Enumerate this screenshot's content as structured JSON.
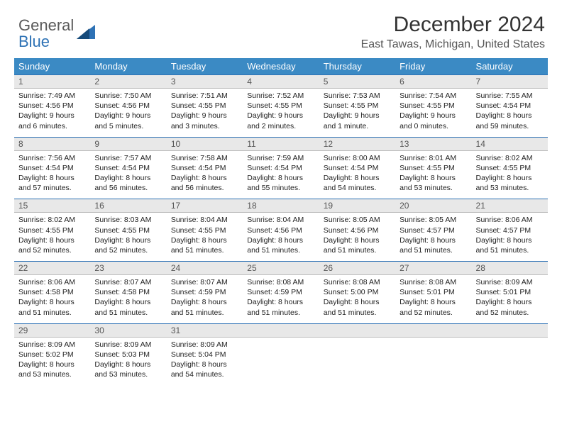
{
  "logo": {
    "word1": "General",
    "word2": "Blue"
  },
  "title": "December 2024",
  "subtitle": "East Tawas, Michigan, United States",
  "colors": {
    "header_bg": "#3b8ac4",
    "header_fg": "#ffffff",
    "daynum_bg": "#e8e8e8",
    "rule": "#2e72b5",
    "logo_gray": "#5a5a5a",
    "logo_blue": "#2e72b5"
  },
  "day_headers": [
    "Sunday",
    "Monday",
    "Tuesday",
    "Wednesday",
    "Thursday",
    "Friday",
    "Saturday"
  ],
  "weeks": [
    [
      {
        "n": "1",
        "sr": "7:49 AM",
        "ss": "4:56 PM",
        "dl": "9 hours and 6 minutes."
      },
      {
        "n": "2",
        "sr": "7:50 AM",
        "ss": "4:56 PM",
        "dl": "9 hours and 5 minutes."
      },
      {
        "n": "3",
        "sr": "7:51 AM",
        "ss": "4:55 PM",
        "dl": "9 hours and 3 minutes."
      },
      {
        "n": "4",
        "sr": "7:52 AM",
        "ss": "4:55 PM",
        "dl": "9 hours and 2 minutes."
      },
      {
        "n": "5",
        "sr": "7:53 AM",
        "ss": "4:55 PM",
        "dl": "9 hours and 1 minute."
      },
      {
        "n": "6",
        "sr": "7:54 AM",
        "ss": "4:55 PM",
        "dl": "9 hours and 0 minutes."
      },
      {
        "n": "7",
        "sr": "7:55 AM",
        "ss": "4:54 PM",
        "dl": "8 hours and 59 minutes."
      }
    ],
    [
      {
        "n": "8",
        "sr": "7:56 AM",
        "ss": "4:54 PM",
        "dl": "8 hours and 57 minutes."
      },
      {
        "n": "9",
        "sr": "7:57 AM",
        "ss": "4:54 PM",
        "dl": "8 hours and 56 minutes."
      },
      {
        "n": "10",
        "sr": "7:58 AM",
        "ss": "4:54 PM",
        "dl": "8 hours and 56 minutes."
      },
      {
        "n": "11",
        "sr": "7:59 AM",
        "ss": "4:54 PM",
        "dl": "8 hours and 55 minutes."
      },
      {
        "n": "12",
        "sr": "8:00 AM",
        "ss": "4:54 PM",
        "dl": "8 hours and 54 minutes."
      },
      {
        "n": "13",
        "sr": "8:01 AM",
        "ss": "4:55 PM",
        "dl": "8 hours and 53 minutes."
      },
      {
        "n": "14",
        "sr": "8:02 AM",
        "ss": "4:55 PM",
        "dl": "8 hours and 53 minutes."
      }
    ],
    [
      {
        "n": "15",
        "sr": "8:02 AM",
        "ss": "4:55 PM",
        "dl": "8 hours and 52 minutes."
      },
      {
        "n": "16",
        "sr": "8:03 AM",
        "ss": "4:55 PM",
        "dl": "8 hours and 52 minutes."
      },
      {
        "n": "17",
        "sr": "8:04 AM",
        "ss": "4:55 PM",
        "dl": "8 hours and 51 minutes."
      },
      {
        "n": "18",
        "sr": "8:04 AM",
        "ss": "4:56 PM",
        "dl": "8 hours and 51 minutes."
      },
      {
        "n": "19",
        "sr": "8:05 AM",
        "ss": "4:56 PM",
        "dl": "8 hours and 51 minutes."
      },
      {
        "n": "20",
        "sr": "8:05 AM",
        "ss": "4:57 PM",
        "dl": "8 hours and 51 minutes."
      },
      {
        "n": "21",
        "sr": "8:06 AM",
        "ss": "4:57 PM",
        "dl": "8 hours and 51 minutes."
      }
    ],
    [
      {
        "n": "22",
        "sr": "8:06 AM",
        "ss": "4:58 PM",
        "dl": "8 hours and 51 minutes."
      },
      {
        "n": "23",
        "sr": "8:07 AM",
        "ss": "4:58 PM",
        "dl": "8 hours and 51 minutes."
      },
      {
        "n": "24",
        "sr": "8:07 AM",
        "ss": "4:59 PM",
        "dl": "8 hours and 51 minutes."
      },
      {
        "n": "25",
        "sr": "8:08 AM",
        "ss": "4:59 PM",
        "dl": "8 hours and 51 minutes."
      },
      {
        "n": "26",
        "sr": "8:08 AM",
        "ss": "5:00 PM",
        "dl": "8 hours and 51 minutes."
      },
      {
        "n": "27",
        "sr": "8:08 AM",
        "ss": "5:01 PM",
        "dl": "8 hours and 52 minutes."
      },
      {
        "n": "28",
        "sr": "8:09 AM",
        "ss": "5:01 PM",
        "dl": "8 hours and 52 minutes."
      }
    ],
    [
      {
        "n": "29",
        "sr": "8:09 AM",
        "ss": "5:02 PM",
        "dl": "8 hours and 53 minutes."
      },
      {
        "n": "30",
        "sr": "8:09 AM",
        "ss": "5:03 PM",
        "dl": "8 hours and 53 minutes."
      },
      {
        "n": "31",
        "sr": "8:09 AM",
        "ss": "5:04 PM",
        "dl": "8 hours and 54 minutes."
      },
      {
        "empty": true
      },
      {
        "empty": true
      },
      {
        "empty": true
      },
      {
        "empty": true
      }
    ]
  ],
  "labels": {
    "sunrise": "Sunrise:",
    "sunset": "Sunset:",
    "daylight": "Daylight:"
  }
}
